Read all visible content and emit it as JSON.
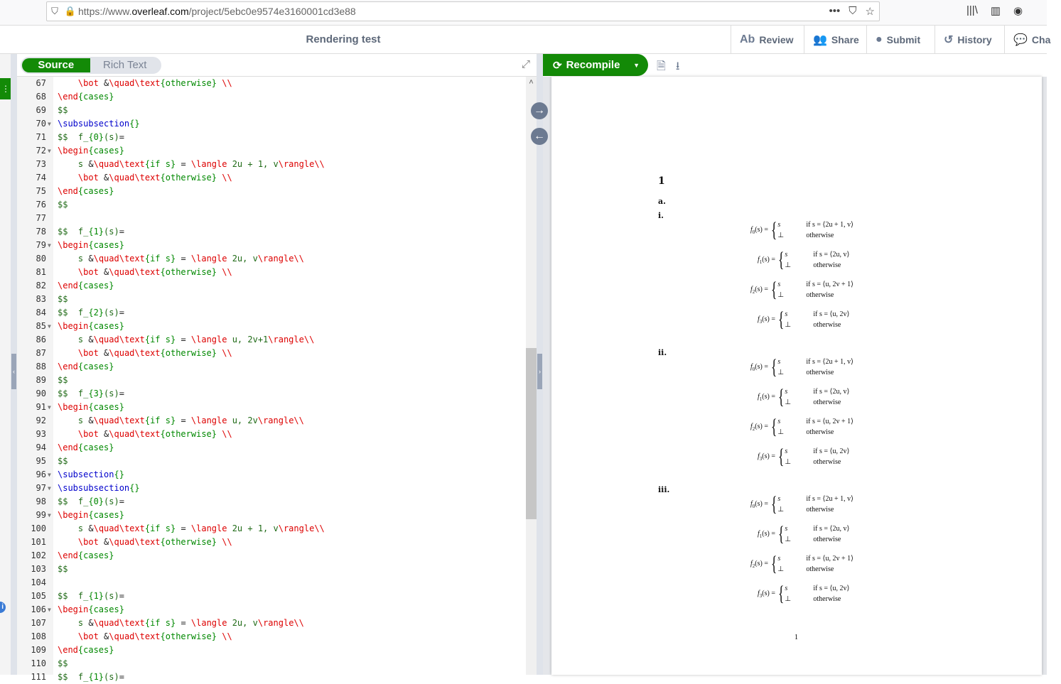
{
  "browser": {
    "url_prefix": "https://www.",
    "url_host": "overleaf.com",
    "url_path": "/project/5ebc0e9574e3160001cd3e88",
    "icons": [
      "shield-icon",
      "lock-icon",
      "more-icon",
      "pocket-icon",
      "star-icon",
      "library-icon",
      "sidebar-icon",
      "account-icon"
    ]
  },
  "header": {
    "title": "Rendering test",
    "buttons": [
      {
        "label": "Review",
        "icon": "review-icon"
      },
      {
        "label": "Share",
        "icon": "users-icon"
      },
      {
        "label": "Submit",
        "icon": "globe-icon"
      },
      {
        "label": "History",
        "icon": "history-icon"
      },
      {
        "label": "Cha",
        "icon": "chat-icon"
      }
    ]
  },
  "editor": {
    "source_label": "Source",
    "rich_label": "Rich Text",
    "mode": "Source",
    "lines": [
      {
        "n": "67",
        "t": "    \\bot &\\quad\\text{otherwise} \\\\"
      },
      {
        "n": "68",
        "t": "\\end{cases}"
      },
      {
        "n": "69",
        "t": "$$"
      },
      {
        "n": "70",
        "t": "\\subsubsection{}",
        "fold": true
      },
      {
        "n": "71",
        "t": "$$  f_{0}(s)="
      },
      {
        "n": "72",
        "t": "\\begin{cases}",
        "fold": true
      },
      {
        "n": "73",
        "t": "    s &\\quad\\text{if s} = \\langle 2u + 1, v\\rangle\\\\"
      },
      {
        "n": "74",
        "t": "    \\bot &\\quad\\text{otherwise} \\\\"
      },
      {
        "n": "75",
        "t": "\\end{cases}"
      },
      {
        "n": "76",
        "t": "$$"
      },
      {
        "n": "77",
        "t": ""
      },
      {
        "n": "78",
        "t": "$$  f_{1}(s)="
      },
      {
        "n": "79",
        "t": "\\begin{cases}",
        "fold": true
      },
      {
        "n": "80",
        "t": "    s &\\quad\\text{if s} = \\langle 2u, v\\rangle\\\\"
      },
      {
        "n": "81",
        "t": "    \\bot &\\quad\\text{otherwise} \\\\"
      },
      {
        "n": "82",
        "t": "\\end{cases}"
      },
      {
        "n": "83",
        "t": "$$"
      },
      {
        "n": "84",
        "t": "$$  f_{2}(s)="
      },
      {
        "n": "85",
        "t": "\\begin{cases}",
        "fold": true
      },
      {
        "n": "86",
        "t": "    s &\\quad\\text{if s} = \\langle u, 2v+1\\rangle\\\\"
      },
      {
        "n": "87",
        "t": "    \\bot &\\quad\\text{otherwise} \\\\"
      },
      {
        "n": "88",
        "t": "\\end{cases}"
      },
      {
        "n": "89",
        "t": "$$"
      },
      {
        "n": "90",
        "t": "$$  f_{3}(s)="
      },
      {
        "n": "91",
        "t": "\\begin{cases}",
        "fold": true
      },
      {
        "n": "92",
        "t": "    s &\\quad\\text{if s} = \\langle u, 2v\\rangle\\\\"
      },
      {
        "n": "93",
        "t": "    \\bot &\\quad\\text{otherwise} \\\\"
      },
      {
        "n": "94",
        "t": "\\end{cases}"
      },
      {
        "n": "95",
        "t": "$$"
      },
      {
        "n": "96",
        "t": "\\subsection{}",
        "fold": true
      },
      {
        "n": "97",
        "t": "\\subsubsection{}",
        "fold": true
      },
      {
        "n": "98",
        "t": "$$  f_{0}(s)="
      },
      {
        "n": "99",
        "t": "\\begin{cases}",
        "fold": true
      },
      {
        "n": "100",
        "t": "    s &\\quad\\text{if s} = \\langle 2u + 1, v\\rangle\\\\"
      },
      {
        "n": "101",
        "t": "    \\bot &\\quad\\text{otherwise} \\\\"
      },
      {
        "n": "102",
        "t": "\\end{cases}"
      },
      {
        "n": "103",
        "t": "$$"
      },
      {
        "n": "104",
        "t": ""
      },
      {
        "n": "105",
        "t": "$$  f_{1}(s)="
      },
      {
        "n": "106",
        "t": "\\begin{cases}",
        "fold": true
      },
      {
        "n": "107",
        "t": "    s &\\quad\\text{if s} = \\langle 2u, v\\rangle\\\\"
      },
      {
        "n": "108",
        "t": "    \\bot &\\quad\\text{otherwise} \\\\"
      },
      {
        "n": "109",
        "t": "\\end{cases}"
      },
      {
        "n": "110",
        "t": "$$"
      },
      {
        "n": "111",
        "t": "$$  f_{1}(s)="
      }
    ]
  },
  "pdf": {
    "recompile_label": "Recompile",
    "section": "1",
    "subsection": "a.",
    "groups": [
      {
        "label": "i.",
        "eqs": [
          {
            "f": "f",
            "sub": "0",
            "arg": "(s) =",
            "c1": "s",
            "cond": "if s = ⟨2u + 1, v⟩",
            "c2": "⊥",
            "other": "otherwise"
          },
          {
            "f": "f",
            "sub": "1",
            "arg": "(s) =",
            "c1": "s",
            "cond": "if s = ⟨2u, v⟩",
            "c2": "⊥",
            "other": "otherwise"
          },
          {
            "f": "f",
            "sub": "2",
            "arg": "(s) =",
            "c1": "s",
            "cond": "if s = ⟨u, 2v + 1⟩",
            "c2": "⊥",
            "other": "otherwise"
          },
          {
            "f": "f",
            "sub": "3",
            "arg": "(s) =",
            "c1": "s",
            "cond": "if s = ⟨u, 2v⟩",
            "c2": "⊥",
            "other": "otherwise"
          }
        ]
      },
      {
        "label": "ii.",
        "eqs": [
          {
            "f": "f",
            "sub": "0",
            "arg": "(s) =",
            "c1": "s",
            "cond": "if s = ⟨2u + 1, v⟩",
            "c2": "⊥",
            "other": "otherwise"
          },
          {
            "f": "f",
            "sub": "1",
            "arg": "(s) =",
            "c1": "s",
            "cond": "if s = ⟨2u, v⟩",
            "c2": "⊥",
            "other": "otherwise"
          },
          {
            "f": "f",
            "sub": "2",
            "arg": "(s) =",
            "c1": "s",
            "cond": "if s = ⟨u, 2v + 1⟩",
            "c2": "⊥",
            "other": "otherwise"
          },
          {
            "f": "f",
            "sub": "3",
            "arg": "(s) =",
            "c1": "s",
            "cond": "if s = ⟨u, 2v⟩",
            "c2": "⊥",
            "other": "otherwise"
          }
        ]
      },
      {
        "label": "iii.",
        "eqs": [
          {
            "f": "f",
            "sub": "0",
            "arg": "(s) =",
            "c1": "s",
            "cond": "if s = ⟨2u + 1, v⟩",
            "c2": "⊥",
            "other": "otherwise"
          },
          {
            "f": "f",
            "sub": "1",
            "arg": "(s) =",
            "c1": "s",
            "cond": "if s = ⟨2u, v⟩",
            "c2": "⊥",
            "other": "otherwise"
          },
          {
            "f": "f",
            "sub": "2",
            "arg": "(s) =",
            "c1": "s",
            "cond": "if s = ⟨u, 2v + 1⟩",
            "c2": "⊥",
            "other": "otherwise"
          },
          {
            "f": "f",
            "sub": "3",
            "arg": "(s) =",
            "c1": "s",
            "cond": "if s = ⟨u, 2v⟩",
            "c2": "⊥",
            "other": "otherwise"
          }
        ]
      }
    ],
    "page_number": "1"
  },
  "colors": {
    "accent": "#138a07",
    "command": "#dd0000",
    "section": "#0000cc",
    "group": "#008800"
  }
}
